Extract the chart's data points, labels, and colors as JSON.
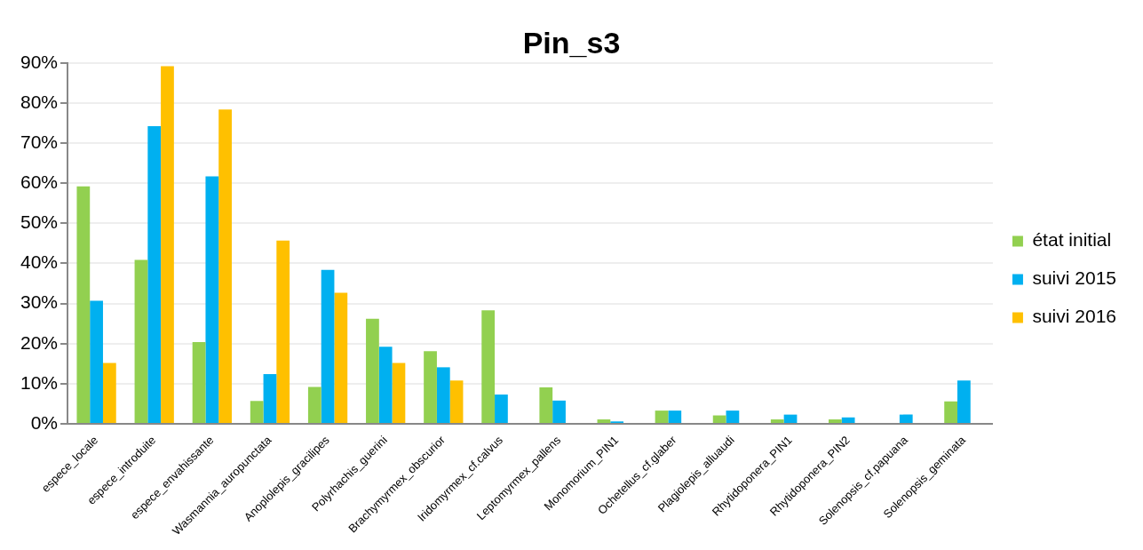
{
  "chart_data": {
    "type": "bar",
    "title": "Pin_s3",
    "categories": [
      "espece_locale",
      "espece_introduite",
      "espece_envahissante",
      "Wasmannia_auropunctata",
      "Anoplolepis_gracilipes",
      "Polyrhachis_guerini",
      "Brachymyrmex_obscurior",
      "Iridomyrmex_cf.calvus",
      "Leptomyrmex_pallens",
      "Monomorium_PIN1",
      "Ochetellus_cf.glaber",
      "Plagiolepis_alluaudi",
      "Rhytidoponera_PIN1",
      "Rhytidoponera_PIN2",
      "Solenopsis_cf.papuana",
      "Solenopsis_geminata"
    ],
    "series": [
      {
        "name": "état initial",
        "color": "#92d050",
        "values": [
          59.2,
          40.9,
          20.4,
          5.7,
          9.2,
          26.2,
          18.1,
          28.3,
          9.1,
          1.1,
          3.3,
          2.1,
          1.1,
          1.1,
          null,
          5.6
        ]
      },
      {
        "name": "suivi 2015",
        "color": "#00b0f0",
        "values": [
          30.7,
          74.2,
          61.7,
          12.4,
          38.4,
          19.2,
          14.1,
          7.3,
          5.8,
          0.6,
          3.3,
          3.3,
          2.3,
          1.6,
          2.3,
          10.8
        ]
      },
      {
        "name": "suivi 2016",
        "color": "#ffc000",
        "values": [
          15.2,
          89.2,
          78.4,
          45.7,
          32.7,
          15.2,
          10.8,
          null,
          null,
          null,
          null,
          null,
          null,
          null,
          null,
          null
        ]
      }
    ],
    "ylim": [
      0,
      90
    ],
    "yticks": [
      {
        "value": 0,
        "label": "0%"
      },
      {
        "value": 10,
        "label": "10%"
      },
      {
        "value": 20,
        "label": "20%"
      },
      {
        "value": 30,
        "label": "30%"
      },
      {
        "value": 40,
        "label": "40%"
      },
      {
        "value": 50,
        "label": "50%"
      },
      {
        "value": 60,
        "label": "60%"
      },
      {
        "value": 70,
        "label": "70%"
      },
      {
        "value": 80,
        "label": "80%"
      },
      {
        "value": 90,
        "label": "90%"
      }
    ],
    "grid": "y",
    "legend": "right"
  }
}
